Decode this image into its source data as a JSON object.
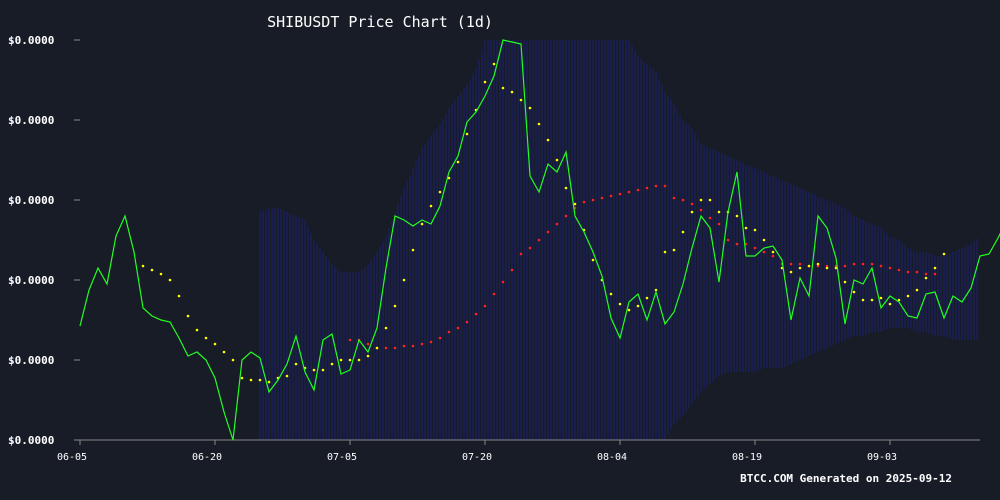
{
  "chart_data": {
    "type": "line",
    "title": "SHIBUSDT Price Chart (1d)",
    "footer": "BTCC.COM Generated on 2025-09-12",
    "y_tick_labels": [
      "$0.0000",
      "$0.0000",
      "$0.0000",
      "$0.0000",
      "$0.0000",
      "$0.0000"
    ],
    "x_tick_labels": [
      "06-05",
      "06-20",
      "07-05",
      "07-20",
      "08-04",
      "08-19",
      "09-03"
    ],
    "ylim": [
      0,
      100
    ],
    "x_day_range": [
      0,
      100
    ],
    "grid": false,
    "colors": {
      "background": "#181c27",
      "price": "#22ff22",
      "ma_short": "#ffff00",
      "ma_long": "#ff2222",
      "band": "#1a1f6e",
      "axis": "#888888"
    },
    "price": {
      "start_day": 0,
      "values": [
        28.5,
        37.5,
        43,
        39,
        51,
        56,
        47,
        33,
        31,
        30,
        29.5,
        25.5,
        21,
        22,
        20,
        15.5,
        7,
        0,
        20,
        22,
        20.5,
        12,
        15,
        19,
        26,
        17,
        12.5,
        25,
        26.5,
        16.5,
        17.5,
        25,
        22,
        28,
        43,
        56,
        55,
        53.5,
        55,
        54,
        58.5,
        67,
        71,
        79.5,
        82,
        86,
        91,
        100,
        99.5,
        99,
        66,
        62,
        69,
        67,
        72,
        56,
        52,
        47,
        41,
        30.5,
        25.5,
        34.5,
        36.5,
        30,
        37,
        29,
        32,
        39,
        48,
        56,
        53,
        39.5,
        57,
        67,
        46,
        46,
        48,
        48.5,
        45,
        30,
        40.5,
        36,
        56,
        53,
        45.5,
        29,
        40,
        39,
        43,
        33,
        36,
        34.5,
        31,
        30.5,
        36.5,
        37,
        30.5,
        36,
        34.5,
        38,
        46,
        46.5,
        50.5,
        55,
        56.5
      ]
    },
    "ma_short": {
      "start_day": 7,
      "values": [
        43.5,
        42.5,
        41.5,
        40,
        36,
        31,
        27.5,
        25.5,
        24,
        22,
        20,
        15.5,
        15,
        15,
        14.5,
        15.5,
        16,
        19,
        18,
        17.5,
        17.5,
        19,
        20,
        20,
        20,
        21,
        23,
        28,
        33.5,
        40,
        47.5,
        54,
        58.5,
        62,
        65.5,
        69.5,
        76.5,
        82.5,
        89.5,
        94,
        88,
        87,
        85,
        83,
        79,
        75,
        70,
        63,
        59,
        52.5,
        45,
        40,
        36.5,
        34,
        32.5,
        33.5,
        35.5,
        37.5,
        47,
        47.5,
        52,
        57,
        60,
        60,
        57,
        57,
        56,
        53,
        52.5,
        50,
        47,
        43,
        42,
        43,
        43.5,
        44,
        43,
        43,
        39.5,
        37,
        35,
        35,
        35.5,
        34,
        35,
        36,
        37.5,
        40.5,
        43,
        46.5
      ]
    },
    "ma_long": {
      "start_day": 30,
      "values": [
        25,
        25,
        24,
        23,
        23,
        23,
        23.5,
        23.5,
        24,
        24.5,
        25.5,
        27,
        28,
        29.5,
        31.5,
        33.5,
        36.5,
        39.5,
        42.5,
        46.5,
        48,
        50,
        52,
        54,
        56,
        58,
        59.5,
        60,
        60.5,
        61,
        61.5,
        62,
        62.5,
        63,
        63.5,
        63.5,
        60.5,
        60,
        59,
        57.5,
        55.5,
        54,
        50,
        49,
        49,
        48,
        47,
        46,
        44,
        44,
        44,
        43.5,
        43.5,
        43.5,
        43.5,
        43.5,
        44,
        44,
        44,
        43.5,
        43,
        42.5,
        42,
        42,
        41.5,
        41.5
      ]
    },
    "band": {
      "start_day": 20,
      "upper": [
        57,
        58,
        58,
        57,
        56,
        55,
        50,
        47,
        44,
        42,
        42,
        42,
        44,
        47,
        51,
        57,
        63,
        68,
        73,
        76,
        79,
        83,
        86,
        89,
        93,
        100,
        100,
        100,
        100,
        100,
        100,
        100,
        100,
        100,
        100,
        100,
        100,
        100,
        100,
        100,
        100,
        100,
        96,
        94,
        92,
        87,
        84,
        80,
        78,
        74,
        73,
        72,
        71,
        70,
        69,
        68,
        67,
        66,
        65,
        64,
        63,
        62,
        61,
        60,
        59,
        58,
        56,
        55,
        54,
        53,
        51,
        50,
        48,
        47,
        47,
        46,
        46,
        47,
        48,
        49,
        51
      ],
      "lower": [
        0,
        0,
        0,
        0,
        0,
        0,
        0,
        0,
        0,
        0,
        0,
        0,
        0,
        0,
        0,
        0,
        0,
        0,
        0,
        0,
        0,
        0,
        0,
        0,
        0,
        0,
        0,
        0,
        0,
        0,
        0,
        0,
        0,
        0,
        0,
        0,
        0,
        0,
        0,
        0,
        0,
        0,
        0,
        0,
        0,
        0,
        4,
        6,
        9,
        12,
        14,
        16,
        17,
        17,
        17,
        17,
        18,
        18,
        18,
        19,
        20,
        21,
        22,
        23,
        24,
        25,
        26,
        26,
        27,
        27,
        28,
        28,
        28,
        27,
        27,
        26,
        26,
        25,
        25,
        25,
        25
      ]
    }
  }
}
